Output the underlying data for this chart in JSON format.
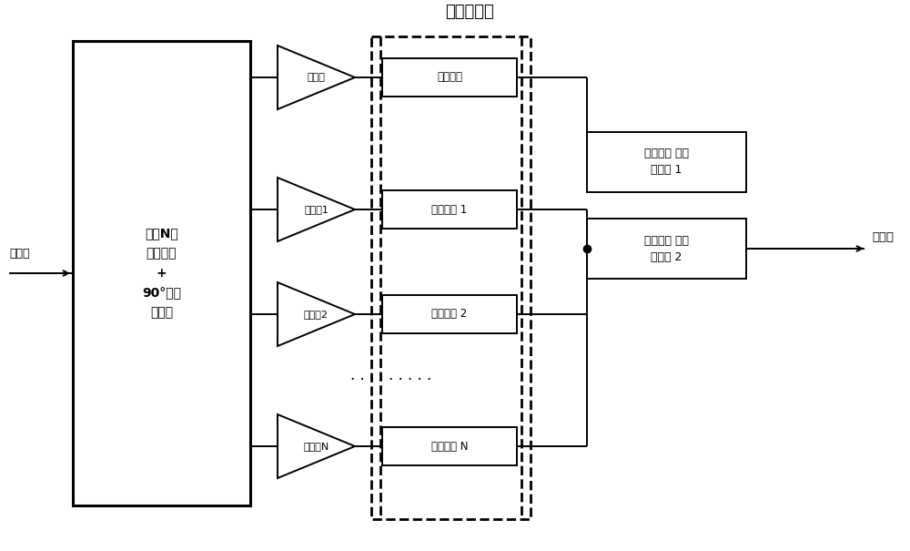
{
  "bg_color": "#ffffff",
  "fig_width": 10.0,
  "fig_height": 6.05,
  "title_text": "双频延迟线",
  "input_label": "输入端",
  "output_label": "输出端",
  "main_box_label": "双频N路\n功率分配\n+\n90°相位\n差输出",
  "main_delay_label": "主延迟线",
  "aux_delay_labels": [
    "辅延迟线 1",
    "辅延迟线 2",
    "辅延迟线 N"
  ],
  "main_amp_label": "主功放",
  "aux_amp_labels": [
    "辅功放1",
    "辅功放2",
    "辅功放N"
  ],
  "qw_line1_label": "四分之一 波长\n传输线 1",
  "qw_line2_label": "四分之一 波长\n传输线 2"
}
